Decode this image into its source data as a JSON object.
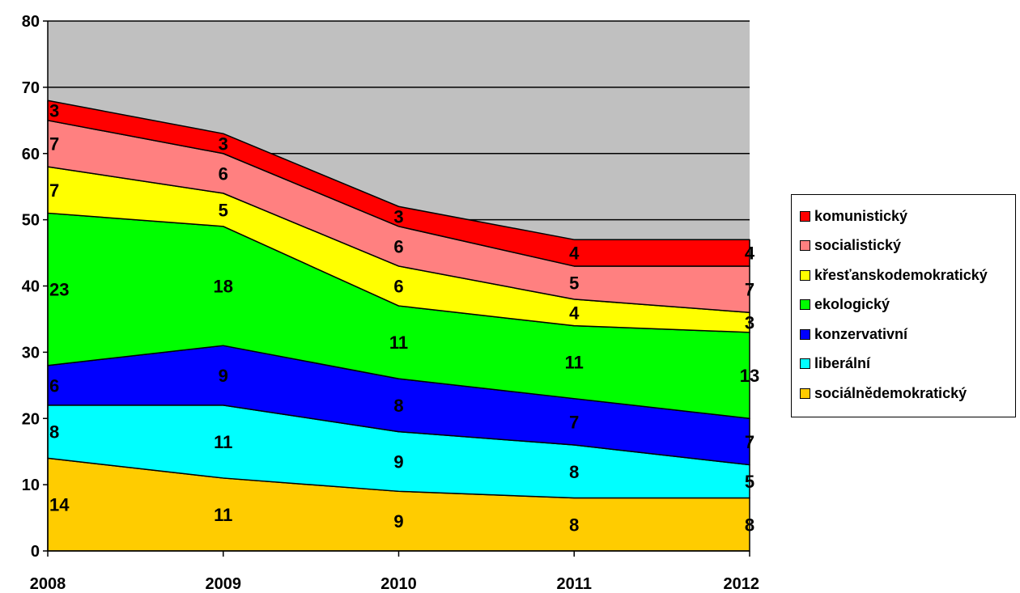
{
  "chart_data": {
    "type": "area",
    "stacked": true,
    "categories": [
      "2008",
      "2009",
      "2010",
      "2011",
      "2012"
    ],
    "ylim": [
      0,
      80
    ],
    "yticks": [
      "0",
      "10",
      "20",
      "30",
      "40",
      "50",
      "60",
      "70",
      "80"
    ],
    "grid": "horizontal",
    "plot_background": "#c0c0c0",
    "legend_position": "right",
    "series": [
      {
        "name": "sociálnědemokratický",
        "color": "#ffcc00",
        "values": [
          14,
          11,
          9,
          8,
          8
        ]
      },
      {
        "name": "liberální",
        "color": "#00ffff",
        "values": [
          8,
          11,
          9,
          8,
          5
        ]
      },
      {
        "name": "konzervativní",
        "color": "#0000ff",
        "values": [
          6,
          9,
          8,
          7,
          7
        ]
      },
      {
        "name": "ekologický",
        "color": "#00ff00",
        "values": [
          23,
          18,
          11,
          11,
          13
        ]
      },
      {
        "name": "křesťanskodemokratický",
        "color": "#ffff00",
        "values": [
          7,
          5,
          6,
          4,
          3
        ]
      },
      {
        "name": "socialistický",
        "color": "#ff8080",
        "values": [
          7,
          6,
          6,
          5,
          7
        ]
      },
      {
        "name": "komunistický",
        "color": "#ff0000",
        "values": [
          3,
          3,
          3,
          4,
          4
        ]
      }
    ]
  }
}
